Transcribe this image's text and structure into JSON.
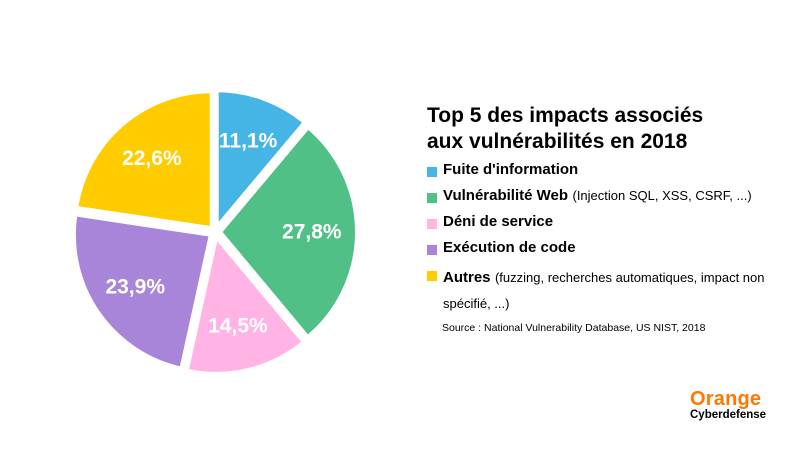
{
  "chart_data": {
    "type": "pie",
    "title_line1": "Top 5 des impacts associés",
    "title_line2": "aux vulnérabilités en 2018",
    "slices": [
      {
        "label": "11,1%",
        "value": 11.1,
        "color": "#45b5e6"
      },
      {
        "label": "27,8%",
        "value": 27.8,
        "color": "#50c087"
      },
      {
        "label": "14,5%",
        "value": 14.5,
        "color": "#ffb4e5"
      },
      {
        "label": "23,9%",
        "value": 23.9,
        "color": "#a885d8"
      },
      {
        "label": "22,6%",
        "value": 22.6,
        "color": "#ffcc00"
      }
    ],
    "legend": [
      {
        "name": "Fuite d'information",
        "note": "",
        "color": "#45b5e6"
      },
      {
        "name": "Vulnérabilité Web",
        "note": "(Injection SQL, XSS, CSRF, ...)",
        "color": "#50c087"
      },
      {
        "name": "Déni de service",
        "note": "",
        "color": "#ffb4e5"
      },
      {
        "name": "Exécution de code",
        "note": "",
        "color": "#a885d8"
      },
      {
        "name": "Autres",
        "note": "(fuzzing, recherches automatiques, impact non spécifié, ...)",
        "color": "#ffcc00"
      }
    ],
    "source": "Source : National Vulnerability Database, US NIST, 2018"
  },
  "logo": {
    "line1": "Orange",
    "line2": "Cyberdefense"
  }
}
